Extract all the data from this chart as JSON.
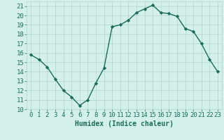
{
  "x": [
    0,
    1,
    2,
    3,
    4,
    5,
    6,
    7,
    8,
    9,
    10,
    11,
    12,
    13,
    14,
    15,
    16,
    17,
    18,
    19,
    20,
    21,
    22,
    23
  ],
  "y": [
    15.8,
    15.3,
    14.5,
    13.2,
    12.0,
    11.3,
    10.4,
    11.0,
    12.8,
    14.4,
    18.8,
    19.0,
    19.5,
    20.3,
    20.7,
    21.1,
    20.3,
    20.2,
    19.9,
    18.6,
    18.3,
    17.0,
    15.3,
    14.0
  ],
  "line_color": "#1a6b5a",
  "marker": "D",
  "marker_size": 2.2,
  "background_color": "#d4f0eb",
  "grid_color": "#b0d4cc",
  "xlabel": "Humidex (Indice chaleur)",
  "xlabel_fontsize": 7,
  "ylabel_ticks": [
    10,
    11,
    12,
    13,
    14,
    15,
    16,
    17,
    18,
    19,
    20,
    21
  ],
  "xlim": [
    -0.5,
    23.5
  ],
  "ylim": [
    10,
    21.5
  ],
  "tick_fontsize": 6.5,
  "linewidth": 1.0
}
